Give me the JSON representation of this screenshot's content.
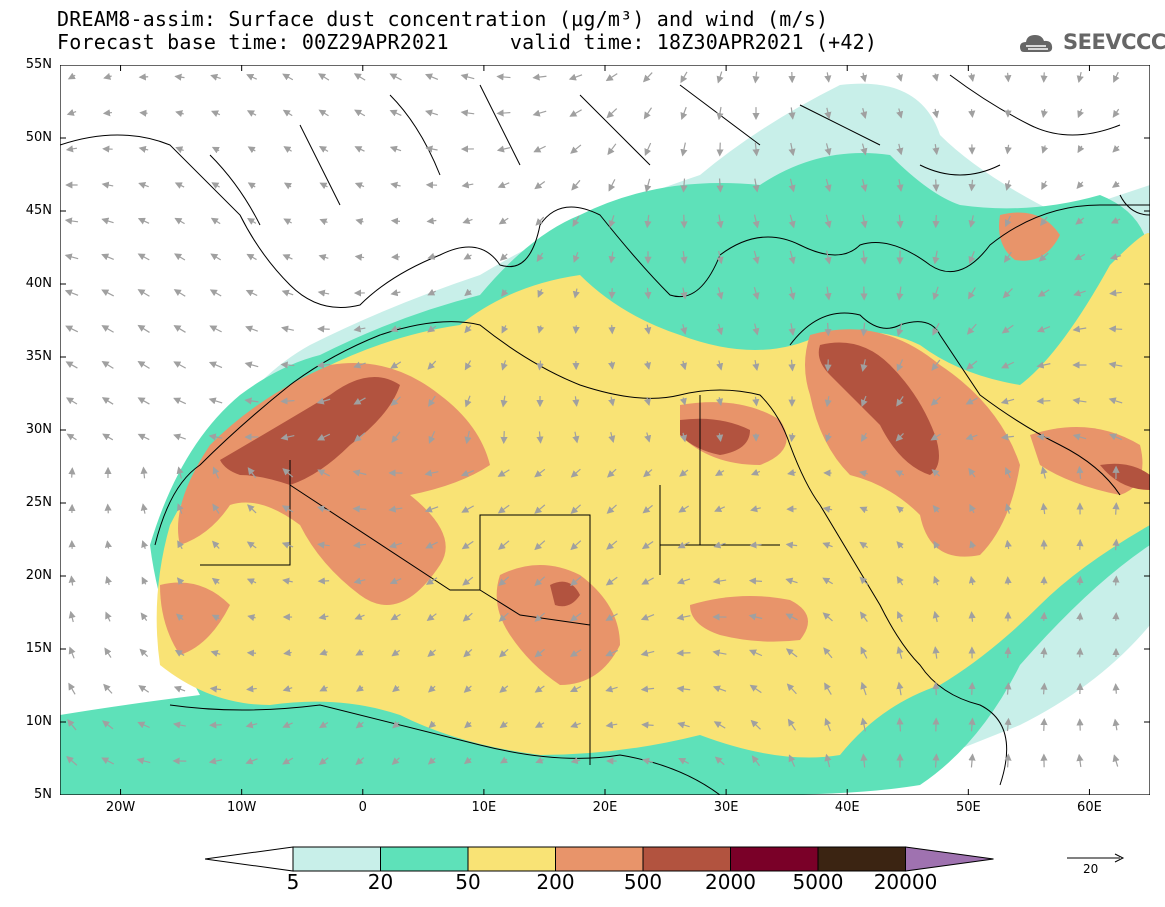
{
  "header": {
    "title_line1": "DREAM8-assim: Surface dust concentration (µg/m³) and wind (m/s)",
    "title_line2": "Forecast base time: 00Z29APR2021     valid time: 18Z30APR2021 (+42)"
  },
  "logo": {
    "text": "SEEVCCC",
    "icon": "cloud-icon"
  },
  "axes": {
    "lat_ticks": [
      "55N",
      "50N",
      "45N",
      "40N",
      "35N",
      "30N",
      "25N",
      "20N",
      "15N",
      "10N",
      "5N"
    ],
    "lon_ticks": [
      "20W",
      "10W",
      "0",
      "10E",
      "20E",
      "30E",
      "40E",
      "50E",
      "60E"
    ],
    "lon_range": [
      -25,
      65
    ],
    "lat_range": [
      5,
      55
    ]
  },
  "colorbar": {
    "labels": [
      "5",
      "20",
      "50",
      "200",
      "500",
      "2000",
      "5000",
      "20000"
    ],
    "colors": [
      "#ffffff",
      "#c8efe9",
      "#5ee1b9",
      "#f9e375",
      "#e8946a",
      "#b2533f",
      "#7a0028",
      "#3b2412",
      "#9f72b0"
    ]
  },
  "wind_reference": {
    "label": "20",
    "icon": "arrow-right-icon"
  }
}
